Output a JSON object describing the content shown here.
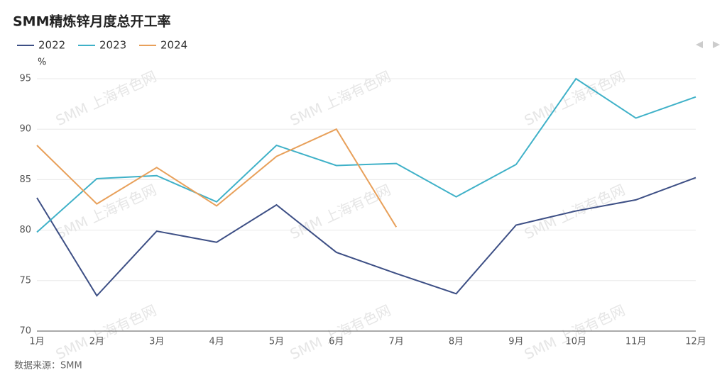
{
  "chart_data": {
    "type": "line",
    "title": "SMM精炼锌月度总开工率",
    "y_label": "%",
    "source": "数据来源：SMM",
    "watermark": "SMM 上海有色网",
    "categories": [
      "1月",
      "2月",
      "3月",
      "4月",
      "5月",
      "6月",
      "7月",
      "8月",
      "9月",
      "10月",
      "11月",
      "12月"
    ],
    "series": [
      {
        "name": "2022",
        "color": "#3d4f85",
        "values": [
          83.2,
          73.5,
          79.9,
          78.8,
          82.5,
          77.8,
          75.7,
          73.7,
          80.5,
          81.9,
          83.0,
          85.2
        ]
      },
      {
        "name": "2023",
        "color": "#3fb1c8",
        "values": [
          79.8,
          85.1,
          85.4,
          82.8,
          88.4,
          86.4,
          86.6,
          83.3,
          86.5,
          95.0,
          91.1,
          93.2
        ]
      },
      {
        "name": "2024",
        "color": "#e8a05a",
        "values": [
          88.4,
          82.6,
          86.2,
          82.4,
          87.3,
          90.0,
          80.3,
          null,
          null,
          null,
          null,
          null
        ]
      }
    ],
    "ylim": [
      70,
      95
    ],
    "yticks": [
      70,
      75,
      80,
      85,
      90,
      95
    ],
    "grid": true,
    "legend": "top-left"
  }
}
